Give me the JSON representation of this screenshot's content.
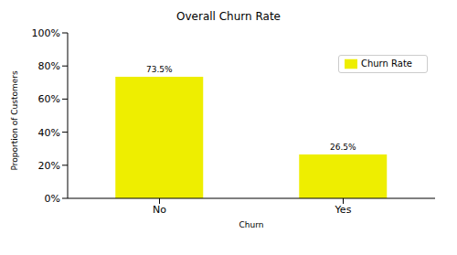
{
  "chart_data": {
    "type": "bar",
    "title": "Overall Churn Rate",
    "x_label": "Churn",
    "y_label": "Proportion of Customers",
    "categories": [
      "No",
      "Yes"
    ],
    "series": [
      {
        "name": "Churn Rate",
        "color": "#eeee00",
        "values": [
          73.5,
          26.5
        ],
        "value_labels": [
          "73.5%",
          "26.5%"
        ]
      }
    ],
    "ylim": [
      0,
      100
    ],
    "yticks": [
      {
        "value": 0,
        "label": "0%"
      },
      {
        "value": 20,
        "label": "20%"
      },
      {
        "value": 40,
        "label": "40%"
      },
      {
        "value": 60,
        "label": "60%"
      },
      {
        "value": 80,
        "label": "80%"
      },
      {
        "value": 100,
        "label": "100%"
      }
    ],
    "grid": false,
    "legend": "upper right",
    "data_labels": true
  }
}
